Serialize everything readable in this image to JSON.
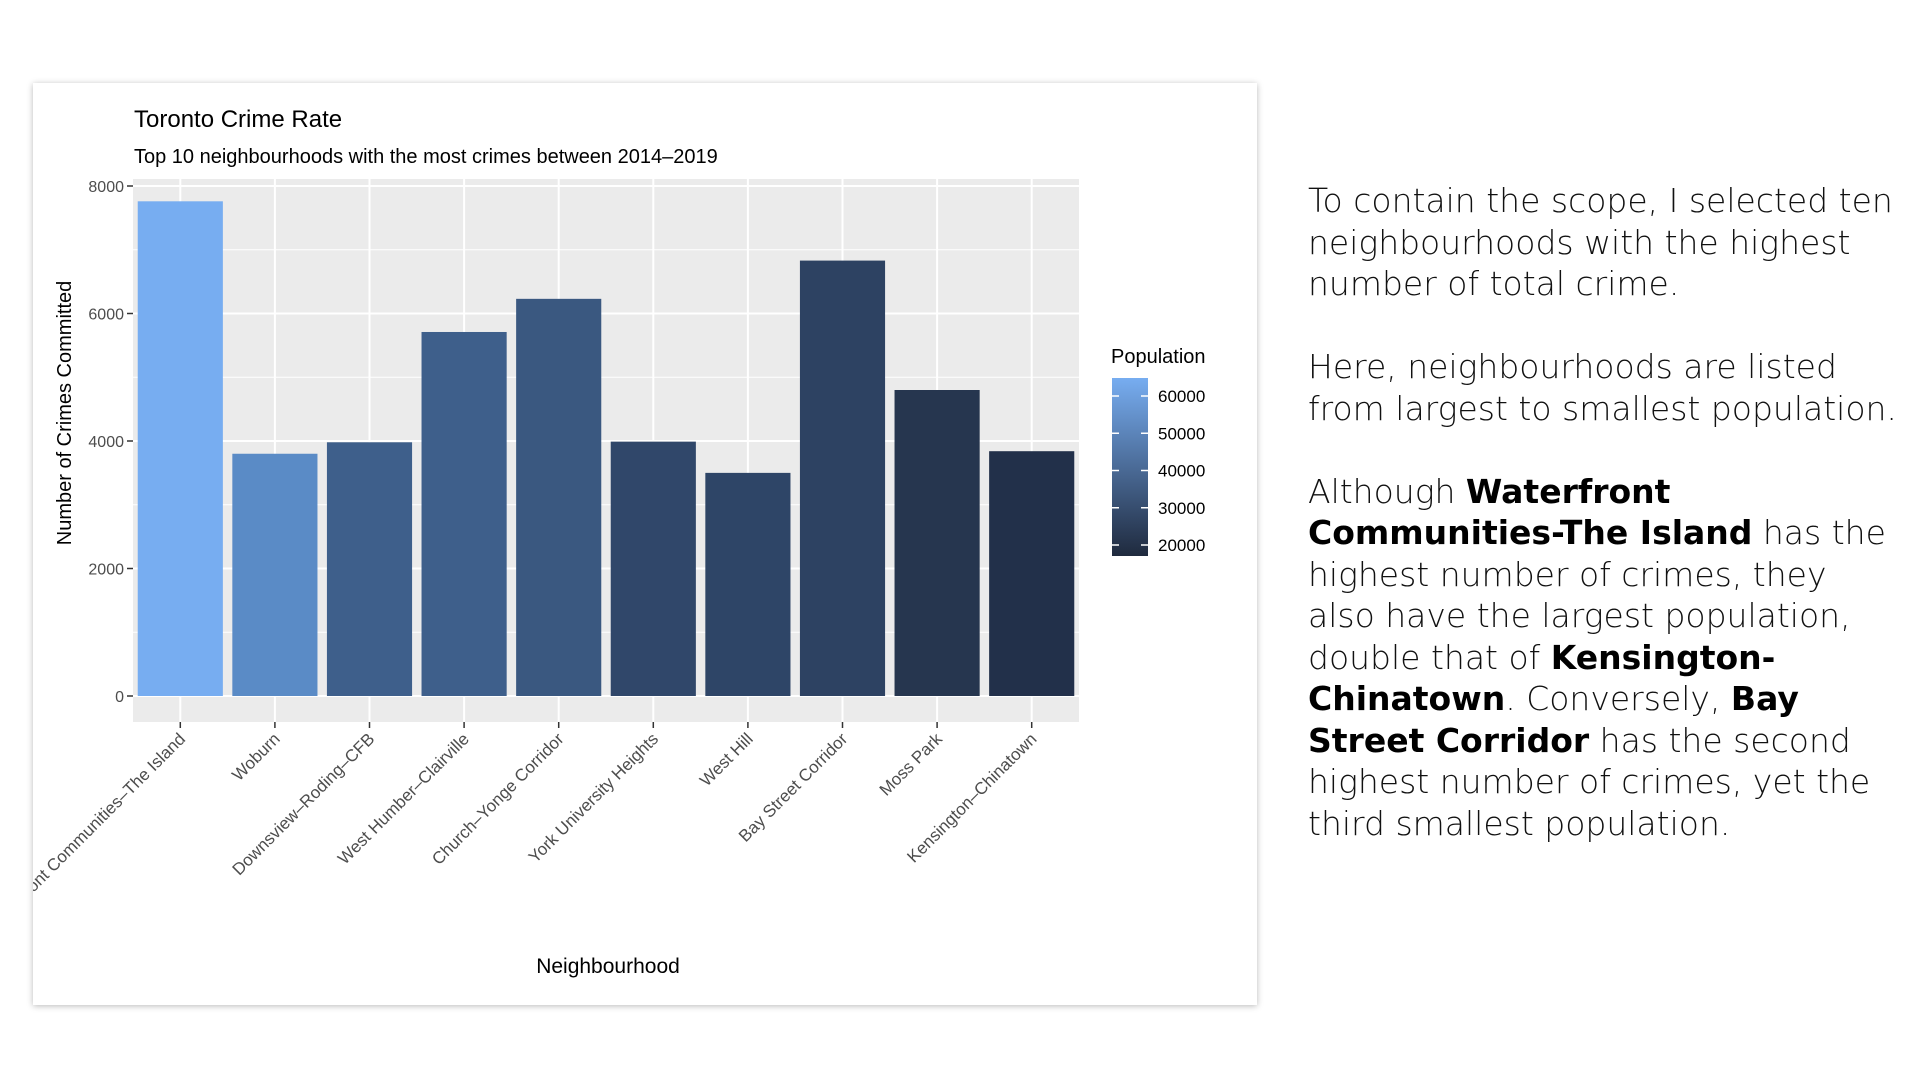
{
  "chart_data": {
    "type": "bar",
    "title": "Toronto Crime Rate",
    "subtitle": "Top 10 neighbourhoods with the most crimes between 2014–2019",
    "xlabel": "Neighbourhood",
    "ylabel": "Number of Crimes Committed",
    "ylim": [
      0,
      8000
    ],
    "yticks": [
      0,
      2000,
      4000,
      6000,
      8000
    ],
    "grid": true,
    "categories": [
      "Waterfront Communities–The Island",
      "Woburn",
      "Downsview–Roding–CFB",
      "West Humber–Clairville",
      "Church–Yonge Corridor",
      "York University Heights",
      "West Hill",
      "Bay Street Corridor",
      "Moss Park",
      "Kensington–Chinatown"
    ],
    "values": [
      7760,
      3800,
      3980,
      5710,
      6230,
      3990,
      3500,
      6830,
      4800,
      3840
    ],
    "fill_colors": [
      "#77adf1",
      "#5a8bc6",
      "#3e5f8b",
      "#3e5f8b",
      "#3a5880",
      "#30476a",
      "#2e4567",
      "#2d4262",
      "#26364f",
      "#22304a"
    ],
    "legend": {
      "title": "Population",
      "placement": "right",
      "labels": [
        "60000",
        "50000",
        "40000",
        "30000",
        "20000"
      ],
      "color_high": "#77adf1",
      "color_low": "#1f2a3e"
    },
    "colors": {
      "panel": "#ebebeb",
      "grid": "#ffffff",
      "tick_text": "#4d4d4d"
    }
  },
  "side_text": {
    "p1": "To contain the scope, I selected ten neighbourhoods with the highest number of total crime.",
    "p2": "Here, neighbourhoods are listed from largest to smallest population.",
    "p3_a": "Although ",
    "p3_b": "Waterfront Communities-The Island",
    "p3_c": " has the highest number of crimes, they also have the largest population, double that of ",
    "p3_d": "Kensington-Chinatown",
    "p3_e": ". Conversely, ",
    "p3_f": "Bay Street Corridor",
    "p3_g": " has the second highest number of crimes, yet the third smallest population."
  }
}
